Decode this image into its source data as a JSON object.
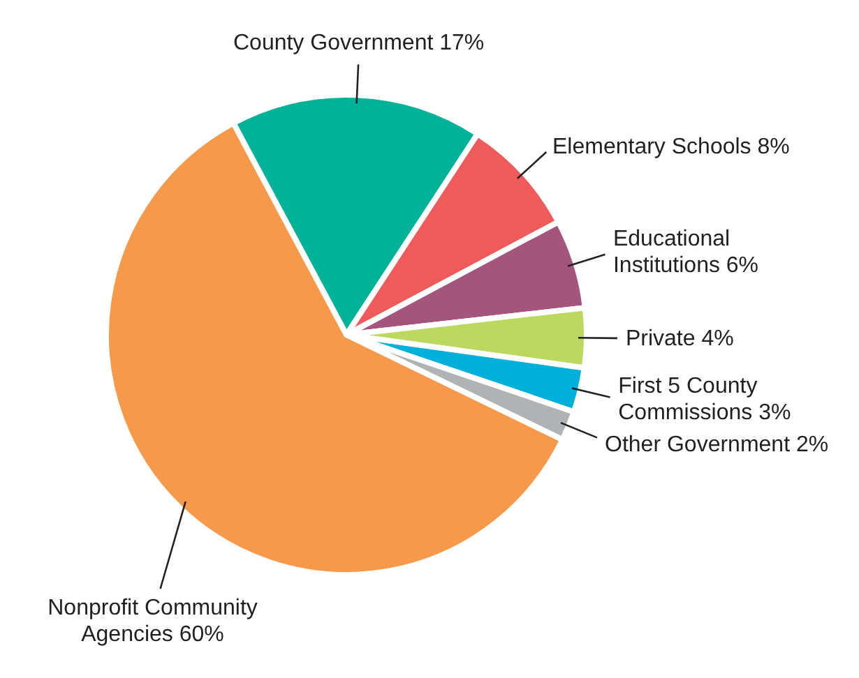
{
  "chart_data": {
    "type": "pie",
    "categories": [
      "County Government",
      "Elementary Schools",
      "Educational Institutions",
      "Private",
      "First 5 County Commissions",
      "Other Government",
      "Nonprofit Community Agencies"
    ],
    "values": [
      17,
      8,
      6,
      4,
      3,
      2,
      60
    ],
    "colors": [
      "#00b398",
      "#ef5b5b",
      "#a5547e",
      "#bdd85f",
      "#00b0d8",
      "#b0b3b5",
      "#f7994b"
    ],
    "value_labels": [
      "17%",
      "8%",
      "6%",
      "4%",
      "3%",
      "2%",
      "60%"
    ]
  }
}
